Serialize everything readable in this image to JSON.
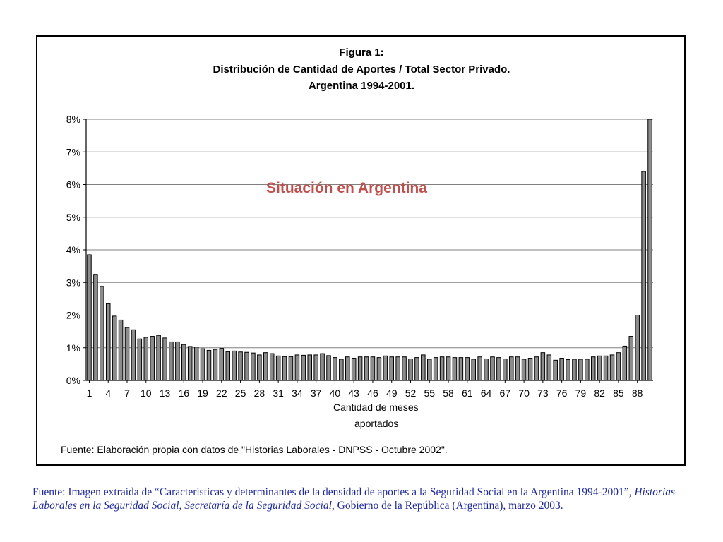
{
  "chart_data": {
    "type": "bar",
    "title_lines": [
      "Figura 1:",
      "Distribución de Cantidad de Aportes / Total Sector Privado.",
      "Argentina 1994-2001."
    ],
    "xlabel_lines": [
      "Cantidad de meses",
      "aportados"
    ],
    "ylabel": "",
    "ylim": [
      0,
      8
    ],
    "y_unit": "%",
    "y_ticks": [
      "0%",
      "1%",
      "2%",
      "3%",
      "4%",
      "5%",
      "6%",
      "7%",
      "8%"
    ],
    "x_tick_labels": [
      "1",
      "4",
      "7",
      "10",
      "13",
      "16",
      "19",
      "22",
      "25",
      "28",
      "31",
      "34",
      "37",
      "40",
      "43",
      "46",
      "49",
      "52",
      "55",
      "58",
      "61",
      "64",
      "67",
      "70",
      "73",
      "76",
      "79",
      "82",
      "85",
      "88"
    ],
    "grid": "horizontal",
    "annotation": "Situación en Argentina",
    "source": "Fuente: Elaboración propia con datos de \"Historias Laborales - DNPSS - Octubre 2002\".",
    "x": [
      1,
      2,
      3,
      4,
      5,
      6,
      7,
      8,
      9,
      10,
      11,
      12,
      13,
      14,
      15,
      16,
      17,
      18,
      19,
      20,
      21,
      22,
      23,
      24,
      25,
      26,
      27,
      28,
      29,
      30,
      31,
      32,
      33,
      34,
      35,
      36,
      37,
      38,
      39,
      40,
      41,
      42,
      43,
      44,
      45,
      46,
      47,
      48,
      49,
      50,
      51,
      52,
      53,
      54,
      55,
      56,
      57,
      58,
      59,
      60,
      61,
      62,
      63,
      64,
      65,
      66,
      67,
      68,
      69,
      70,
      71,
      72,
      73,
      74,
      75,
      76,
      77,
      78,
      79,
      80,
      81,
      82,
      83,
      84,
      85,
      86,
      87,
      88,
      89,
      90
    ],
    "values": [
      3.85,
      3.25,
      2.88,
      2.35,
      1.97,
      1.85,
      1.62,
      1.55,
      1.27,
      1.32,
      1.35,
      1.38,
      1.3,
      1.18,
      1.18,
      1.1,
      1.04,
      1.02,
      0.97,
      0.92,
      0.95,
      0.98,
      0.88,
      0.9,
      0.87,
      0.86,
      0.84,
      0.78,
      0.85,
      0.82,
      0.75,
      0.73,
      0.73,
      0.78,
      0.77,
      0.78,
      0.78,
      0.82,
      0.76,
      0.7,
      0.65,
      0.72,
      0.68,
      0.72,
      0.72,
      0.72,
      0.7,
      0.75,
      0.72,
      0.72,
      0.72,
      0.66,
      0.7,
      0.78,
      0.65,
      0.7,
      0.72,
      0.72,
      0.7,
      0.7,
      0.7,
      0.65,
      0.72,
      0.66,
      0.72,
      0.7,
      0.66,
      0.72,
      0.72,
      0.65,
      0.68,
      0.72,
      0.85,
      0.78,
      0.62,
      0.68,
      0.64,
      0.65,
      0.65,
      0.65,
      0.72,
      0.75,
      0.75,
      0.78,
      0.85,
      1.05,
      1.35,
      2.0,
      6.4,
      8.0
    ],
    "colors": {
      "bar_fill": "#8c8c8c",
      "bar_stroke": "#000000",
      "grid": "#808080",
      "annotation": "#c0504d",
      "caption": "#1f2a9a"
    }
  },
  "caption": {
    "part1": "Fuente: Imagen extraída de “Características y determinantes de la densidad de aportes a la Seguridad Social en la Argentina 1994-2001”, ",
    "part2_italic": "Historias Laborales en la Seguridad Social, Secretaría de la Seguridad Social",
    "part3": ", Gobierno de la República (Argentina), marzo 2003."
  }
}
